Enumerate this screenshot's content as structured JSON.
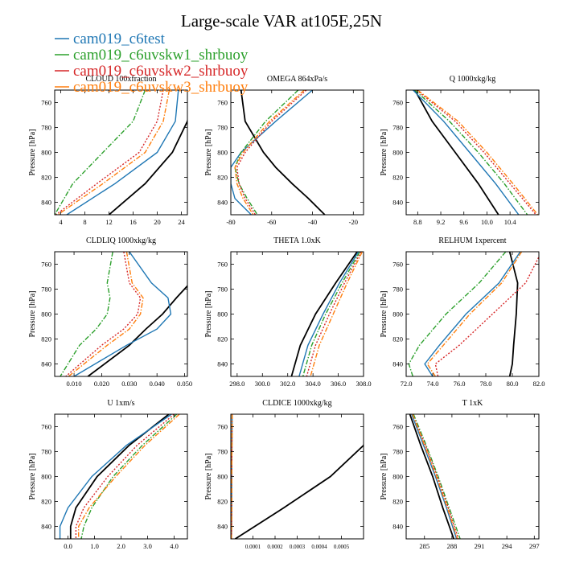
{
  "figure": {
    "title": "Large-scale VAR at105E,25N",
    "ylabel": "Pressure [hPa]",
    "yticks": [
      760,
      780,
      800,
      820,
      840
    ],
    "ylim": [
      750,
      850
    ],
    "legend": {
      "placement": "top-left",
      "entries": [
        {
          "name": "cam019_c6test",
          "color": "#1f77b4",
          "style": "solid"
        },
        {
          "name": "cam019_c6uvskw1_shrbuoy",
          "color": "#2ca02c",
          "style": "dashdot"
        },
        {
          "name": "cam019_c6uvskw2_shrbuoy",
          "color": "#d62728",
          "style": "dotted"
        },
        {
          "name": "cam019_c6uvskw3_shrbuoy",
          "color": "#ff7f0e",
          "style": "dashdot"
        }
      ]
    }
  },
  "chart_data": [
    {
      "type": "line",
      "title": "CLOUD 100xfraction",
      "xlim": [
        3,
        25
      ],
      "xticks": [
        4,
        8,
        12,
        16,
        20,
        24
      ],
      "xticklabels": [
        "4",
        "8",
        "12",
        "16",
        "20",
        "24"
      ],
      "p": [
        750,
        775,
        800,
        825,
        850
      ],
      "series": [
        {
          "name": "black",
          "color": "#000000",
          "x": [
            26,
            25,
            22.5,
            18,
            12
          ]
        },
        {
          "name": "cam019_c6test",
          "color": "#1f77b4",
          "x": [
            23.5,
            23,
            20,
            13,
            5
          ]
        },
        {
          "name": "cam019_c6uvskw1_shrbuoy",
          "color": "#2ca02c",
          "x": [
            18,
            16,
            11,
            6,
            3
          ]
        },
        {
          "name": "cam019_c6uvskw2_shrbuoy",
          "color": "#d62728",
          "x": [
            21,
            20,
            17,
            10,
            3.2
          ]
        },
        {
          "name": "cam019_c6uvskw3_shrbuoy",
          "color": "#ff7f0e",
          "x": [
            22,
            21,
            18,
            11,
            3.5
          ]
        }
      ]
    },
    {
      "type": "line",
      "title": "OMEGA 864xPa/s",
      "xlim": [
        -80,
        -15
      ],
      "xticks": [
        -80,
        -60,
        -40,
        -20
      ],
      "xticklabels": [
        "-80",
        "-60",
        "-40",
        "-20"
      ],
      "p": [
        750,
        775,
        800,
        812,
        825,
        837,
        850
      ],
      "series": [
        {
          "name": "black",
          "color": "#000000",
          "x": [
            -75,
            -73,
            -64,
            -58,
            -50,
            -42,
            -34
          ]
        },
        {
          "name": "cam019_c6test",
          "color": "#1f77b4",
          "x": [
            -40,
            -58,
            -75,
            -80,
            -80,
            -78,
            -70
          ]
        },
        {
          "name": "cam019_c6uvskw1_shrbuoy",
          "color": "#2ca02c",
          "x": [
            -47,
            -63,
            -75,
            -78,
            -76,
            -72,
            -67
          ]
        },
        {
          "name": "cam019_c6uvskw2_shrbuoy",
          "color": "#d62728",
          "x": [
            -43,
            -60,
            -73,
            -77,
            -76,
            -73,
            -68
          ]
        },
        {
          "name": "cam019_c6uvskw3_shrbuoy",
          "color": "#ff7f0e",
          "x": [
            -44,
            -61,
            -74,
            -78,
            -77,
            -74,
            -69
          ]
        }
      ]
    },
    {
      "type": "line",
      "title": "Q 1000xkg/kg",
      "xlim": [
        8.6,
        10.9
      ],
      "xticks": [
        8.8,
        9.2,
        9.6,
        10.0,
        10.4
      ],
      "xticklabels": [
        "8.8",
        "9.2",
        "9.6",
        "10.0",
        "10.4"
      ],
      "p": [
        750,
        775,
        800,
        825,
        850
      ],
      "series": [
        {
          "name": "black",
          "color": "#000000",
          "x": [
            8.75,
            9.05,
            9.45,
            9.85,
            10.2
          ]
        },
        {
          "name": "cam019_c6test",
          "color": "#1f77b4",
          "x": [
            8.72,
            9.25,
            9.7,
            10.15,
            10.55
          ]
        },
        {
          "name": "cam019_c6uvskw1_shrbuoy",
          "color": "#2ca02c",
          "x": [
            8.75,
            9.35,
            9.85,
            10.3,
            10.7
          ]
        },
        {
          "name": "cam019_c6uvskw2_shrbuoy",
          "color": "#d62728",
          "x": [
            8.78,
            9.45,
            9.95,
            10.4,
            10.85
          ]
        },
        {
          "name": "cam019_c6uvskw3_shrbuoy",
          "color": "#ff7f0e",
          "x": [
            8.8,
            9.5,
            10.0,
            10.45,
            10.88
          ]
        }
      ]
    },
    {
      "type": "line",
      "title": "CLDLIQ 1000xkg/kg",
      "xlim": [
        0.003,
        0.051
      ],
      "xticks": [
        0.01,
        0.02,
        0.03,
        0.04,
        0.05
      ],
      "xticklabels": [
        "0.010",
        "0.020",
        "0.030",
        "0.040",
        "0.050"
      ],
      "p": [
        750,
        775,
        787,
        800,
        812,
        825,
        850
      ],
      "series": [
        {
          "name": "black",
          "color": "#000000",
          "x": [
            0.058,
            0.052,
            0.047,
            0.042,
            0.036,
            0.03,
            0.015
          ]
        },
        {
          "name": "cam019_c6test",
          "color": "#1f77b4",
          "x": [
            0.03,
            0.038,
            0.044,
            0.045,
            0.04,
            0.029,
            0.01
          ]
        },
        {
          "name": "cam019_c6uvskw1_shrbuoy",
          "color": "#2ca02c",
          "x": [
            0.024,
            0.022,
            0.023,
            0.022,
            0.018,
            0.012,
            0.005
          ]
        },
        {
          "name": "cam019_c6uvskw2_shrbuoy",
          "color": "#d62728",
          "x": [
            0.028,
            0.03,
            0.034,
            0.033,
            0.028,
            0.02,
            0.007
          ]
        },
        {
          "name": "cam019_c6uvskw3_shrbuoy",
          "color": "#ff7f0e",
          "x": [
            0.029,
            0.031,
            0.035,
            0.034,
            0.03,
            0.022,
            0.008
          ]
        }
      ]
    },
    {
      "type": "line",
      "title": "THETA 1.0xK",
      "xlim": [
        297.5,
        308
      ],
      "xticks": [
        298,
        300,
        302,
        304,
        306,
        308
      ],
      "xticklabels": [
        "298.0",
        "300.0",
        "302.0",
        "304.0",
        "306.0",
        "308.0"
      ],
      "p": [
        750,
        775,
        800,
        825,
        850
      ],
      "series": [
        {
          "name": "black",
          "color": "#000000",
          "x": [
            307.5,
            305.8,
            304.2,
            303.0,
            302.3
          ]
        },
        {
          "name": "cam019_c6test",
          "color": "#1f77b4",
          "x": [
            307.6,
            306.1,
            304.8,
            303.6,
            302.9
          ]
        },
        {
          "name": "cam019_c6uvskw1_shrbuoy",
          "color": "#2ca02c",
          "x": [
            307.7,
            306.3,
            305.0,
            303.9,
            303.2
          ]
        },
        {
          "name": "cam019_c6uvskw2_shrbuoy",
          "color": "#d62728",
          "x": [
            307.8,
            306.5,
            305.3,
            304.2,
            303.5
          ]
        },
        {
          "name": "cam019_c6uvskw3_shrbuoy",
          "color": "#ff7f0e",
          "x": [
            307.9,
            306.7,
            305.6,
            304.5,
            303.8
          ]
        }
      ]
    },
    {
      "type": "line",
      "title": "RELHUM 1xpercent",
      "xlim": [
        72,
        82
      ],
      "xticks": [
        72,
        74,
        76,
        78,
        80,
        82
      ],
      "xticklabels": [
        "72.0",
        "74.0",
        "76.0",
        "78.0",
        "80.0",
        "82.0"
      ],
      "p": [
        750,
        775,
        800,
        825,
        840,
        850
      ],
      "series": [
        {
          "name": "black",
          "color": "#000000",
          "x": [
            79.8,
            80.4,
            80.3,
            80.1,
            80.0,
            79.8
          ]
        },
        {
          "name": "cam019_c6test",
          "color": "#1f77b4",
          "x": [
            80.6,
            79.0,
            76.5,
            74.5,
            73.4,
            74.0
          ]
        },
        {
          "name": "cam019_c6uvskw1_shrbuoy",
          "color": "#2ca02c",
          "x": [
            79.5,
            77.5,
            75.0,
            73.0,
            72.2,
            72.5
          ]
        },
        {
          "name": "cam019_c6uvskw2_shrbuoy",
          "color": "#d62728",
          "x": [
            82.2,
            81.0,
            78.5,
            76.0,
            74.2,
            74.4
          ]
        },
        {
          "name": "cam019_c6uvskw3_shrbuoy",
          "color": "#ff7f0e",
          "x": [
            80.7,
            79.2,
            76.8,
            74.8,
            73.6,
            74.2
          ]
        }
      ]
    },
    {
      "type": "line",
      "title": "U 1xm/s",
      "xlim": [
        -0.5,
        4.5
      ],
      "xticks": [
        0.0,
        1.0,
        2.0,
        3.0,
        4.0
      ],
      "xticklabels": [
        "0.0",
        "1.0",
        "2.0",
        "3.0",
        "4.0"
      ],
      "p": [
        750,
        775,
        800,
        825,
        840,
        850
      ],
      "series": [
        {
          "name": "black",
          "color": "#000000",
          "x": [
            3.8,
            2.3,
            1.1,
            0.3,
            0.1,
            0.1
          ]
        },
        {
          "name": "cam019_c6test",
          "color": "#1f77b4",
          "x": [
            3.9,
            2.2,
            0.9,
            0.0,
            -0.3,
            -0.3
          ]
        },
        {
          "name": "cam019_c6uvskw1_shrbuoy",
          "color": "#2ca02c",
          "x": [
            4.1,
            2.8,
            1.7,
            0.9,
            0.6,
            0.5
          ]
        },
        {
          "name": "cam019_c6uvskw2_shrbuoy",
          "color": "#d62728",
          "x": [
            4.0,
            2.6,
            1.5,
            0.6,
            0.3,
            0.3
          ]
        },
        {
          "name": "cam019_c6uvskw3_shrbuoy",
          "color": "#ff7f0e",
          "x": [
            4.2,
            2.9,
            1.8,
            0.8,
            0.4,
            0.4
          ]
        }
      ]
    },
    {
      "type": "line",
      "title": "CLDICE 1000xkg/kg",
      "xlim": [
        0.0,
        0.0006
      ],
      "xticks": [
        0.0001,
        0.0002,
        0.0003,
        0.0004,
        0.0005
      ],
      "xticklabels": [
        "0.0001",
        "0.0002",
        "0.0003",
        "0.0004",
        "0.0005"
      ],
      "p": [
        750,
        775,
        800,
        825,
        850
      ],
      "series": [
        {
          "name": "black",
          "color": "#000000",
          "x": [
            0.00064,
            0.0006,
            0.00045,
            0.00024,
            2e-05
          ]
        },
        {
          "name": "cam019_c6test",
          "color": "#1f77b4",
          "x": [
            6e-06,
            5e-06,
            4e-06,
            4e-06,
            3e-06
          ]
        },
        {
          "name": "cam019_c6uvskw1_shrbuoy",
          "color": "#2ca02c",
          "x": [
            6e-06,
            5e-06,
            4e-06,
            4e-06,
            3e-06
          ]
        },
        {
          "name": "cam019_c6uvskw2_shrbuoy",
          "color": "#d62728",
          "x": [
            6e-06,
            5e-06,
            4e-06,
            4e-06,
            3e-06
          ]
        },
        {
          "name": "cam019_c6uvskw3_shrbuoy",
          "color": "#ff7f0e",
          "x": [
            6e-06,
            5e-06,
            4e-06,
            4e-06,
            3e-06
          ]
        }
      ]
    },
    {
      "type": "line",
      "title": "T 1xK",
      "xlim": [
        283,
        297.5
      ],
      "xticks": [
        285,
        288,
        291,
        294,
        297
      ],
      "xticklabels": [
        "285",
        "288",
        "291",
        "294",
        "297"
      ],
      "p": [
        750,
        775,
        800,
        825,
        850
      ],
      "series": [
        {
          "name": "black",
          "color": "#000000",
          "x": [
            283.4,
            284.6,
            285.9,
            287.0,
            288.2
          ]
        },
        {
          "name": "cam019_c6test",
          "color": "#1f77b4",
          "x": [
            283.6,
            284.9,
            286.2,
            287.4,
            288.5
          ]
        },
        {
          "name": "cam019_c6uvskw1_shrbuoy",
          "color": "#2ca02c",
          "x": [
            283.8,
            285.2,
            286.5,
            287.7,
            288.9
          ]
        },
        {
          "name": "cam019_c6uvskw2_shrbuoy",
          "color": "#d62728",
          "x": [
            283.7,
            285.1,
            286.4,
            287.6,
            288.7
          ]
        },
        {
          "name": "cam019_c6uvskw3_shrbuoy",
          "color": "#ff7f0e",
          "x": [
            283.7,
            285.0,
            286.3,
            287.5,
            288.6
          ]
        }
      ]
    }
  ]
}
